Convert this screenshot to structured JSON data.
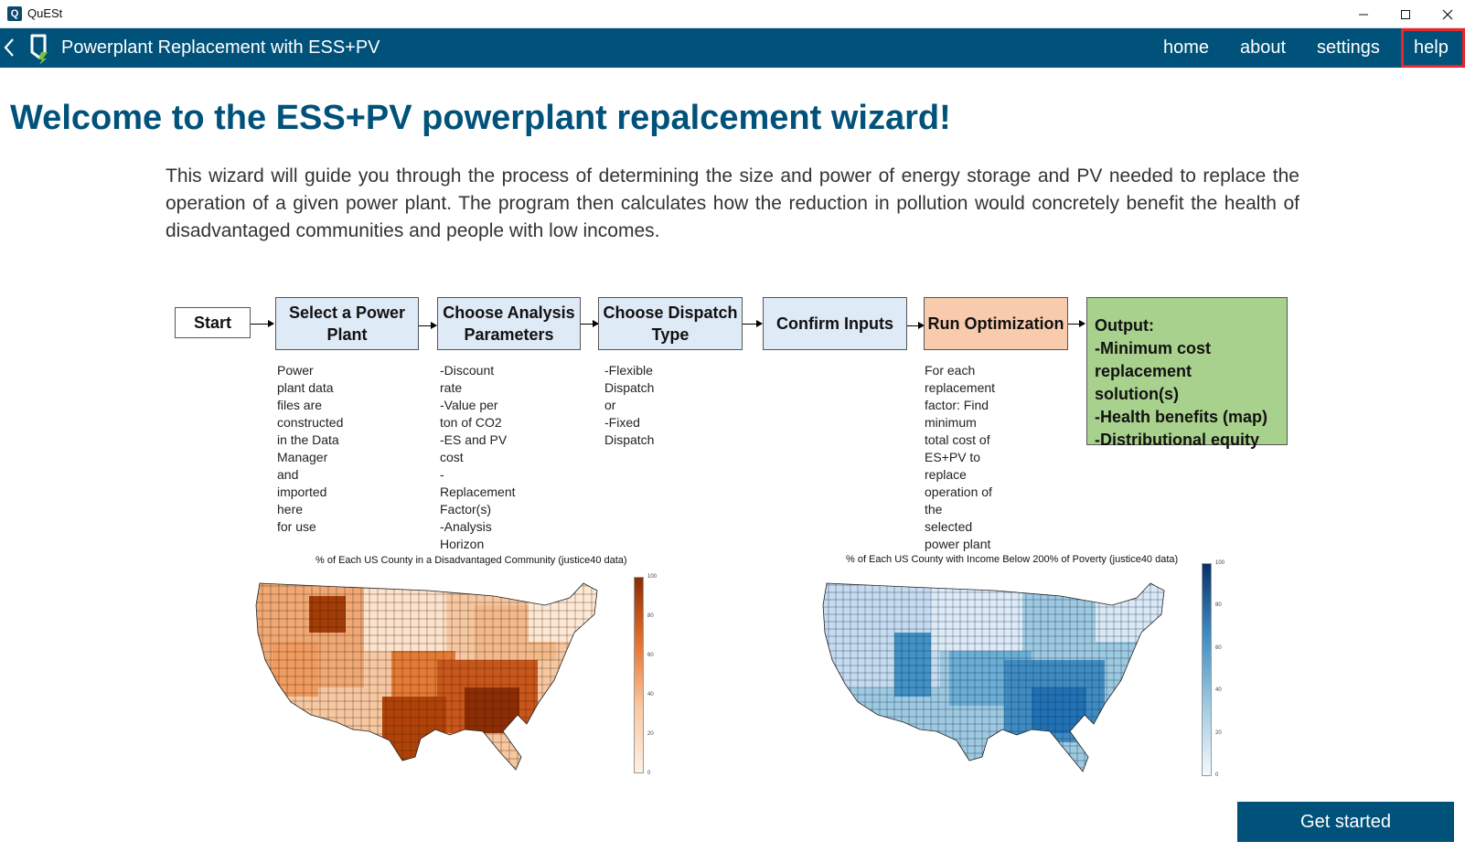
{
  "window": {
    "title": "QuESt",
    "app_icon_letter": "Q"
  },
  "navbar": {
    "title": "Powerplant Replacement with ESS+PV",
    "links": {
      "home": "home",
      "about": "about",
      "settings": "settings",
      "help": "help"
    }
  },
  "main": {
    "heading": "Welcome to the ESS+PV powerplant repalcement wizard!",
    "intro": "This wizard will guide you through the process of determining the size and power of energy storage and PV needed to replace the operation of a given power plant. The program then calculates how the reduction in pollution would concretely benefit the health of disadvantaged communities and people with low incomes."
  },
  "flowchart": {
    "start": "Start",
    "step1": "Select a Power Plant",
    "step2": "Choose Analysis Parameters",
    "step3": "Choose Dispatch Type",
    "step4": "Confirm Inputs",
    "step5": "Run Optimization",
    "output_title": "Output:",
    "output_items": [
      "-Minimum cost replacement solution(s)",
      "-Health benefits (map)",
      "-Distributional equity"
    ],
    "note1": "Power plant data\nfiles are constructed\nin the Data Manager\nand imported here\nfor use",
    "note2": "-Discount rate\n-Value per ton of CO2\n-ES and PV cost\n-Replacement Factor(s)\n-Analysis Horizon",
    "note3": "-Flexible Dispatch\n or\n-Fixed Dispatch",
    "note5": "For each replacement\nfactor: Find minimum\ntotal cost of ES+PV to\nreplace operation of the\nselected power plant"
  },
  "maps": {
    "left": {
      "title": "% of Each US County in a Disadvantaged Community (justice40 data)",
      "ticks": [
        "100",
        "80",
        "60",
        "40",
        "20",
        "0"
      ],
      "color_low": "#fdf0e4",
      "color_high": "#8c2d04"
    },
    "right": {
      "title": "% of Each US County with Income Below 200% of Poverty (justice40 data)",
      "ticks": [
        "100",
        "80",
        "60",
        "40",
        "20",
        "0"
      ],
      "color_low": "#f4f9fe",
      "color_high": "#08306b"
    }
  },
  "footer": {
    "cta_label": "Get started"
  },
  "colors": {
    "brand": "#00527a",
    "highlight": "#e8262a"
  }
}
